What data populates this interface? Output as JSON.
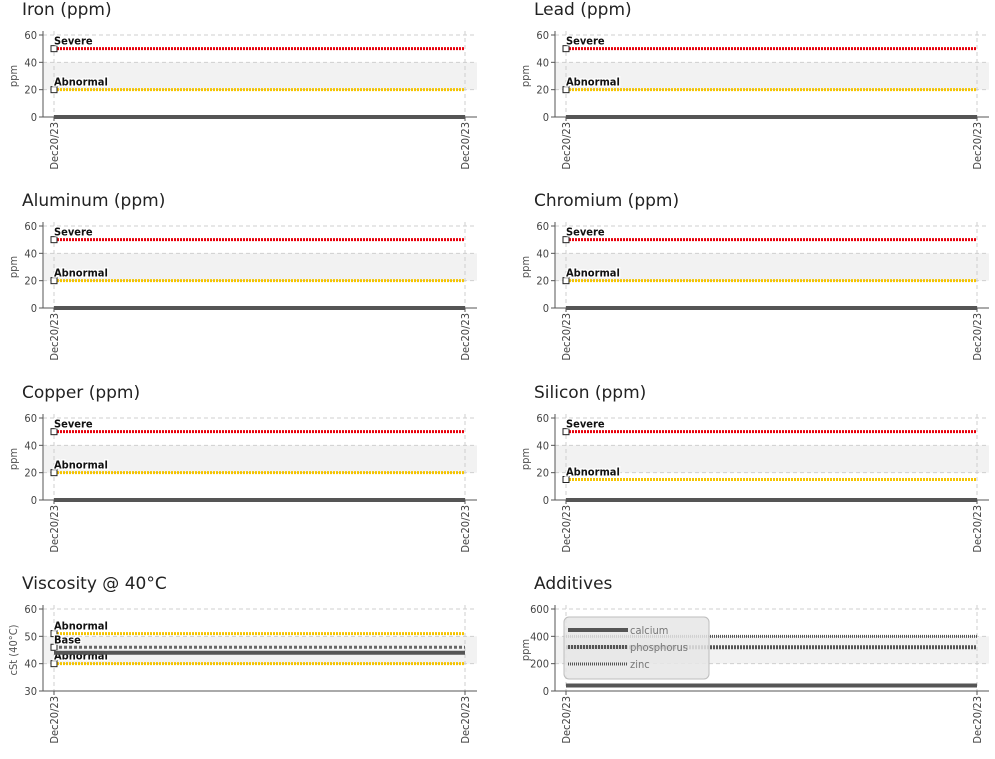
{
  "colors": {
    "severe": "#e8000b",
    "abnormal": "#f5c400",
    "base": "#666666",
    "axis": "#555555",
    "line": "#555555",
    "grid": "#cfcfcf",
    "band": "#f2f2f2"
  },
  "chart_data": [
    {
      "type": "line",
      "title": "Iron (ppm)",
      "ylabel": "ppm",
      "ylim": [
        0,
        60
      ],
      "yticks": [
        0,
        20,
        40,
        60
      ],
      "x": [
        "Dec20/23",
        "Dec20/23"
      ],
      "series": [
        {
          "values": [
            0,
            0
          ]
        }
      ],
      "thresholds": [
        {
          "name": "Severe",
          "value": 50,
          "color": "severe"
        },
        {
          "name": "Abnormal",
          "value": 20,
          "color": "abnormal"
        }
      ],
      "band": [
        20,
        40
      ],
      "grid": true
    },
    {
      "type": "line",
      "title": "Lead (ppm)",
      "ylabel": "ppm",
      "ylim": [
        0,
        60
      ],
      "yticks": [
        0,
        20,
        40,
        60
      ],
      "x": [
        "Dec20/23",
        "Dec20/23"
      ],
      "series": [
        {
          "values": [
            0,
            0
          ]
        }
      ],
      "thresholds": [
        {
          "name": "Severe",
          "value": 50,
          "color": "severe"
        },
        {
          "name": "Abnormal",
          "value": 20,
          "color": "abnormal"
        }
      ],
      "band": [
        20,
        40
      ],
      "grid": true
    },
    {
      "type": "line",
      "title": "Aluminum (ppm)",
      "ylabel": "ppm",
      "ylim": [
        0,
        60
      ],
      "yticks": [
        0,
        20,
        40,
        60
      ],
      "x": [
        "Dec20/23",
        "Dec20/23"
      ],
      "series": [
        {
          "values": [
            0,
            0
          ]
        }
      ],
      "thresholds": [
        {
          "name": "Severe",
          "value": 50,
          "color": "severe"
        },
        {
          "name": "Abnormal",
          "value": 20,
          "color": "abnormal"
        }
      ],
      "band": [
        20,
        40
      ],
      "grid": true
    },
    {
      "type": "line",
      "title": "Chromium (ppm)",
      "ylabel": "ppm",
      "ylim": [
        0,
        60
      ],
      "yticks": [
        0,
        20,
        40,
        60
      ],
      "x": [
        "Dec20/23",
        "Dec20/23"
      ],
      "series": [
        {
          "values": [
            0,
            0
          ]
        }
      ],
      "thresholds": [
        {
          "name": "Severe",
          "value": 50,
          "color": "severe"
        },
        {
          "name": "Abnormal",
          "value": 20,
          "color": "abnormal"
        }
      ],
      "band": [
        20,
        40
      ],
      "grid": true
    },
    {
      "type": "line",
      "title": "Copper (ppm)",
      "ylabel": "ppm",
      "ylim": [
        0,
        60
      ],
      "yticks": [
        0,
        20,
        40,
        60
      ],
      "x": [
        "Dec20/23",
        "Dec20/23"
      ],
      "series": [
        {
          "values": [
            0,
            0
          ]
        }
      ],
      "thresholds": [
        {
          "name": "Severe",
          "value": 50,
          "color": "severe"
        },
        {
          "name": "Abnormal",
          "value": 20,
          "color": "abnormal"
        }
      ],
      "band": [
        20,
        40
      ],
      "grid": true
    },
    {
      "type": "line",
      "title": "Silicon (ppm)",
      "ylabel": "ppm",
      "ylim": [
        0,
        60
      ],
      "yticks": [
        0,
        20,
        40,
        60
      ],
      "x": [
        "Dec20/23",
        "Dec20/23"
      ],
      "series": [
        {
          "values": [
            0,
            0
          ]
        }
      ],
      "thresholds": [
        {
          "name": "Severe",
          "value": 50,
          "color": "severe"
        },
        {
          "name": "Abnormal",
          "value": 15,
          "color": "abnormal"
        }
      ],
      "band": [
        20,
        40
      ],
      "grid": true
    },
    {
      "type": "line",
      "title": "Viscosity @ 40°C",
      "ylabel": "cSt (40°C)",
      "ylim": [
        30,
        60
      ],
      "yticks": [
        30,
        40,
        50,
        60
      ],
      "x": [
        "Dec20/23",
        "Dec20/23"
      ],
      "series": [
        {
          "values": [
            44,
            44
          ]
        }
      ],
      "thresholds": [
        {
          "name": "Abnormal",
          "value": 51,
          "color": "abnormal"
        },
        {
          "name": "Base",
          "value": 46,
          "color": "base"
        },
        {
          "name": "Abnormal",
          "value": 40,
          "color": "abnormal"
        }
      ],
      "band": [
        40,
        50
      ],
      "grid": true
    },
    {
      "type": "line",
      "title": "Additives",
      "ylabel": "ppm",
      "ylim": [
        0,
        600
      ],
      "yticks": [
        0,
        200,
        400,
        600
      ],
      "x": [
        "Dec20/23",
        "Dec20/23"
      ],
      "series": [
        {
          "name": "calcium",
          "values": [
            40,
            40
          ],
          "style": "solid"
        },
        {
          "name": "phosphorus",
          "values": [
            320,
            320
          ],
          "style": "dotted"
        },
        {
          "name": "zinc",
          "values": [
            400,
            400
          ],
          "style": "dashed"
        }
      ],
      "thresholds": [],
      "band": [
        200,
        400
      ],
      "grid": true,
      "legend": "top-left"
    }
  ]
}
